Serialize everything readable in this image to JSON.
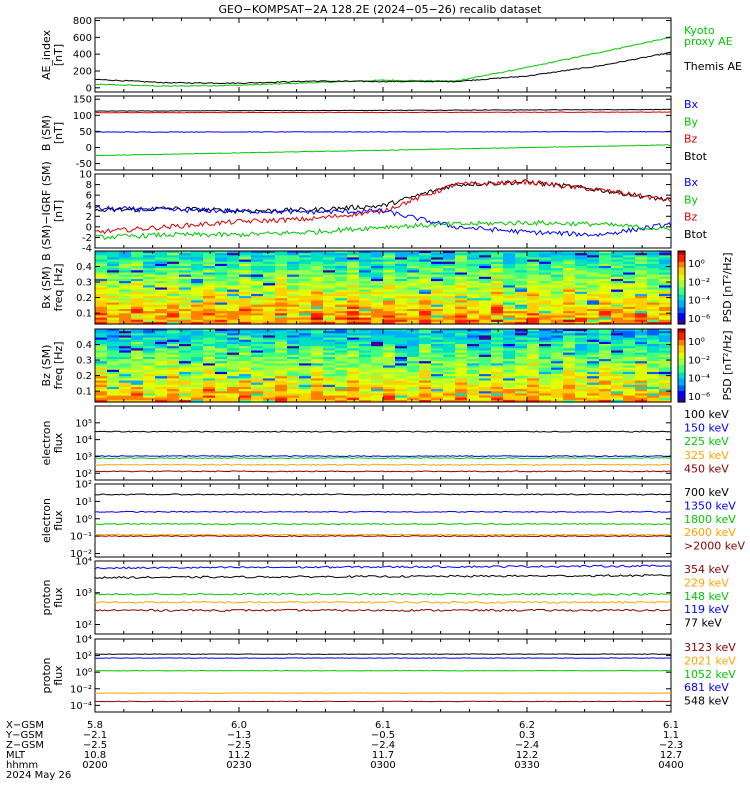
{
  "title": "GEO−KOMPSAT−2A 128.2E (2024−05−26) recalib dataset",
  "panels": [
    {
      "ylabel": [
        "AE_index",
        "[nT]"
      ],
      "yticks": [
        "0",
        "200",
        "400",
        "600",
        "800"
      ],
      "ylim": [
        -50,
        830
      ],
      "legend": [
        {
          "text": "Kyoto",
          "color": "#00c800"
        },
        {
          "text": "proxy AE",
          "color": "#00c800"
        },
        {
          "text": "Themis AE",
          "color": "#000000"
        }
      ]
    },
    {
      "ylabel": [
        "B (SM)",
        "[nT]"
      ],
      "yticks": [
        "-50",
        "0",
        "50",
        "100",
        "150"
      ],
      "ylim": [
        -70,
        160
      ],
      "legend": [
        {
          "text": "Bx",
          "color": "#0000ff"
        },
        {
          "text": "By",
          "color": "#00c800"
        },
        {
          "text": "Bz",
          "color": "#dd0000"
        },
        {
          "text": "Btot",
          "color": "#000000"
        }
      ]
    },
    {
      "ylabel": [
        "B (SM)−IGRF (SM)",
        "[nT]"
      ],
      "yticks": [
        "-4",
        "-2",
        "0",
        "2",
        "4",
        "6",
        "8",
        "10"
      ],
      "ylim": [
        -4,
        10
      ],
      "legend": [
        {
          "text": "Bx",
          "color": "#0000ff"
        },
        {
          "text": "By",
          "color": "#00c800"
        },
        {
          "text": "Bz",
          "color": "#dd0000"
        },
        {
          "text": "Btot",
          "color": "#000000"
        }
      ]
    },
    {
      "ylabel": [
        "Bx (SM)",
        "freq [Hz]"
      ],
      "yticks": [
        "0.1",
        "0.2",
        "0.3",
        "0.4"
      ],
      "ylim": [
        0.03,
        0.5
      ],
      "cbar_ticks": [
        "10⁰",
        "10⁻²",
        "10⁻⁴",
        "10⁻⁶"
      ],
      "cbar_label": "PSD [nT²/Hz]"
    },
    {
      "ylabel": [
        "Bz (SM)",
        "freq [Hz]"
      ],
      "yticks": [
        "0.1",
        "0.2",
        "0.3",
        "0.4"
      ],
      "ylim": [
        0.03,
        0.5
      ],
      "cbar_ticks": [
        "10⁰",
        "10⁻²",
        "10⁻⁴",
        "10⁻⁶"
      ],
      "cbar_label": "PSD [nT²/Hz]"
    },
    {
      "ylabel": [
        "electron",
        "flux"
      ],
      "yticks": [
        "10²",
        "10³",
        "10⁴",
        "10⁵"
      ],
      "ylog": [
        1.6,
        6
      ],
      "legend": [
        {
          "text": "100 keV",
          "color": "#000000"
        },
        {
          "text": "150 keV",
          "color": "#0000ff"
        },
        {
          "text": "225 keV",
          "color": "#00c800"
        },
        {
          "text": "325 keV",
          "color": "#ffa500"
        },
        {
          "text": "450 keV",
          "color": "#8b0000"
        }
      ]
    },
    {
      "ylabel": [
        "electron",
        "flux"
      ],
      "yticks": [
        "10⁻²",
        "10⁻¹",
        "10⁰",
        "10¹",
        "10²"
      ],
      "ylog": [
        -2.2,
        2
      ],
      "legend": [
        {
          "text": "700 keV",
          "color": "#000000"
        },
        {
          "text": "1350 keV",
          "color": "#0000ff"
        },
        {
          "text": "1800 keV",
          "color": "#00c800"
        },
        {
          "text": "2600 keV",
          "color": "#ffa500"
        },
        {
          "text": ">2000 keV",
          "color": "#8b0000"
        }
      ]
    },
    {
      "ylabel": [
        "proton",
        "flux"
      ],
      "yticks": [
        "10²",
        "10³",
        "10⁴"
      ],
      "ylog": [
        1.7,
        4
      ],
      "legend": [
        {
          "text": "354 keV",
          "color": "#8b0000"
        },
        {
          "text": "229 keV",
          "color": "#ffa500"
        },
        {
          "text": "148 keV",
          "color": "#00c800"
        },
        {
          "text": "119 keV",
          "color": "#0000ff"
        },
        {
          "text": "77 keV",
          "color": "#000000"
        }
      ]
    },
    {
      "ylabel": [
        "proton",
        "flux"
      ],
      "yticks": [
        "10⁻⁴",
        "10⁻²",
        "10⁰",
        "10²",
        "10⁴"
      ],
      "ylog": [
        -4.8,
        4
      ],
      "legend": [
        {
          "text": "3123 keV",
          "color": "#8b0000"
        },
        {
          "text": "2021 keV",
          "color": "#ffa500"
        },
        {
          "text": "1052 keV",
          "color": "#00c800"
        },
        {
          "text": "681 keV",
          "color": "#0000ff"
        },
        {
          "text": "548 keV",
          "color": "#000000"
        }
      ]
    }
  ],
  "xaxis": {
    "rows": [
      {
        "label": "X−GSM",
        "values": [
          "5.8",
          "6.0",
          "6.1",
          "6.2",
          "6.1"
        ]
      },
      {
        "label": "Y−GSM",
        "values": [
          "−2.1",
          "−1.3",
          "−0.5",
          "0.3",
          "1.1"
        ]
      },
      {
        "label": "Z−GSM",
        "values": [
          "−2.5",
          "−2.5",
          "−2.4",
          "−2.4",
          "−2.3"
        ]
      },
      {
        "label": "MLT",
        "values": [
          "10.8",
          "11.2",
          "11.7",
          "12.2",
          "12.7"
        ]
      },
      {
        "label": "hhmm",
        "values": [
          "0200",
          "0230",
          "0300",
          "0330",
          "0400"
        ]
      }
    ],
    "date": "2024 May 26"
  },
  "chart_data": [
    {
      "type": "line",
      "panel": "AE index",
      "x_hours": [
        2.0,
        2.25,
        2.5,
        2.75,
        3.0,
        3.25,
        3.5,
        3.75,
        4.0
      ],
      "series": [
        {
          "name": "Kyoto proxy AE",
          "color": "#00c800",
          "values": [
            40,
            20,
            30,
            60,
            90,
            80,
            240,
            420,
            600
          ]
        },
        {
          "name": "Themis AE",
          "color": "#000000",
          "values": [
            100,
            60,
            55,
            80,
            75,
            75,
            140,
            260,
            420
          ]
        }
      ],
      "ylim": [
        0,
        800
      ]
    },
    {
      "type": "line",
      "panel": "B (SM)",
      "x_hours": [
        2.0,
        4.0
      ],
      "series": [
        {
          "name": "Btot",
          "color": "#000000",
          "values": [
            113,
            118
          ]
        },
        {
          "name": "Bz",
          "color": "#dd0000",
          "values": [
            108,
            110
          ]
        },
        {
          "name": "Bx",
          "color": "#0000ff",
          "values": [
            48,
            49
          ]
        },
        {
          "name": "By",
          "color": "#00c800",
          "values": [
            -25,
            8
          ]
        }
      ],
      "ylim": [
        -50,
        150
      ]
    },
    {
      "type": "line",
      "panel": "B (SM)−IGRF (SM)",
      "x_hours": [
        2.0,
        2.25,
        2.5,
        2.75,
        3.0,
        3.25,
        3.5,
        3.75,
        4.0
      ],
      "series": [
        {
          "name": "Btot",
          "color": "#000000",
          "values": [
            3,
            3.5,
            3,
            3.2,
            4,
            8,
            8.5,
            7,
            5
          ]
        },
        {
          "name": "Bz",
          "color": "#dd0000",
          "values": [
            -1,
            0,
            1,
            1.5,
            3,
            8,
            8.5,
            7,
            5
          ]
        },
        {
          "name": "Bx",
          "color": "#0000ff",
          "values": [
            3.5,
            3.2,
            3,
            2.8,
            3,
            0,
            -1,
            -1.5,
            0.5
          ]
        },
        {
          "name": "By",
          "color": "#00c800",
          "values": [
            -2,
            -1.5,
            -1.5,
            -1,
            0,
            0.5,
            0.8,
            0.5,
            -0.5
          ]
        }
      ],
      "ylim": [
        -4,
        10
      ]
    },
    {
      "type": "heatmap",
      "panel": "Bx (SM) PSD",
      "y": "freq [Hz]",
      "ylim": [
        0.03,
        0.5
      ],
      "z": "PSD [nT²/Hz]"
    },
    {
      "type": "heatmap",
      "panel": "Bz (SM) PSD",
      "y": "freq [Hz]",
      "ylim": [
        0.03,
        0.5
      ],
      "z": "PSD [nT²/Hz]"
    },
    {
      "type": "line",
      "panel": "electron flux (low energy)",
      "ylog": true,
      "series": [
        {
          "name": "100 keV",
          "color": "#000000",
          "values": [
            30000,
            30000
          ]
        },
        {
          "name": "150 keV",
          "color": "#0000ff",
          "values": [
            1050,
            1050
          ]
        },
        {
          "name": "225 keV",
          "color": "#00c800",
          "values": [
            800,
            800
          ]
        },
        {
          "name": "325 keV",
          "color": "#ffa500",
          "values": [
            320,
            320
          ]
        },
        {
          "name": "450 keV",
          "color": "#8b0000",
          "values": [
            130,
            130
          ]
        }
      ]
    },
    {
      "type": "line",
      "panel": "electron flux (high energy)",
      "ylog": true,
      "series": [
        {
          "name": "700 keV",
          "color": "#000000",
          "values": [
            25,
            25
          ]
        },
        {
          "name": "1350 keV",
          "color": "#0000ff",
          "values": [
            2.5,
            2.5
          ]
        },
        {
          "name": "1800 keV",
          "color": "#00c800",
          "values": [
            0.5,
            0.5
          ]
        },
        {
          "name": "2600 keV",
          "color": "#ffa500",
          "values": [
            0.12,
            0.12
          ]
        },
        {
          "name": ">2000 keV",
          "color": "#8b0000",
          "values": [
            0.1,
            0.1
          ]
        }
      ]
    },
    {
      "type": "line",
      "panel": "proton flux (low energy)",
      "ylog": true,
      "series": [
        {
          "name": "119 keV",
          "color": "#0000ff",
          "values": [
            6000,
            7000
          ]
        },
        {
          "name": "77 keV",
          "color": "#000000",
          "values": [
            3000,
            3500
          ]
        },
        {
          "name": "148 keV",
          "color": "#00c800",
          "values": [
            900,
            900
          ]
        },
        {
          "name": "229 keV",
          "color": "#ffa500",
          "values": [
            500,
            500
          ]
        },
        {
          "name": "354 keV",
          "color": "#8b0000",
          "values": [
            280,
            280
          ]
        }
      ]
    },
    {
      "type": "line",
      "panel": "proton flux (high energy)",
      "ylog": true,
      "series": [
        {
          "name": "548 keV",
          "color": "#000000",
          "values": [
            150,
            150
          ]
        },
        {
          "name": "681 keV",
          "color": "#0000ff",
          "values": [
            50,
            50
          ]
        },
        {
          "name": "1052 keV",
          "color": "#00c800",
          "values": [
            1.5,
            1.5
          ]
        },
        {
          "name": "2021 keV",
          "color": "#ffa500",
          "values": [
            0.003,
            0.003
          ]
        },
        {
          "name": "3123 keV",
          "color": "#8b0000",
          "values": [
            0.0003,
            0.0003
          ]
        }
      ]
    }
  ]
}
